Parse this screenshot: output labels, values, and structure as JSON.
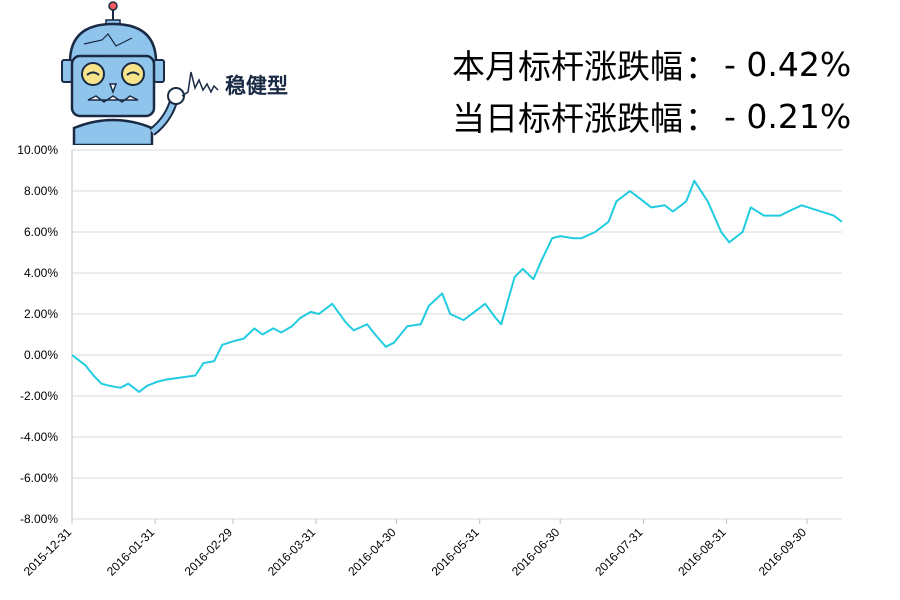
{
  "header": {
    "monthly_label": "本月标杆涨跌幅",
    "monthly_value": "- 0.42%",
    "daily_label": "当日标杆涨跌幅",
    "daily_value": "- 0.21%",
    "separator": "：",
    "brand": "稳健型"
  },
  "colors": {
    "line": "#22cce0",
    "grid": "#d9d9d9",
    "robot_body": "#8fc4ec",
    "robot_outline": "#1a2a44"
  },
  "icons": {
    "mascot": "robot-mascot-icon"
  },
  "chart_data": {
    "type": "line",
    "ylim": [
      -8,
      10
    ],
    "yticks": [
      10,
      8,
      6,
      4,
      2,
      0,
      -2,
      -4,
      -6,
      -8
    ],
    "ytick_labels": [
      "10.00%",
      "8.00%",
      "6.00%",
      "4.00%",
      "2.00%",
      "0.00%",
      "-2.00%",
      "-4.00%",
      "-6.00%",
      "-8.00%"
    ],
    "xticks": [
      "2015-12-31",
      "2016-01-31",
      "2016-02-29",
      "2016-03-31",
      "2016-04-30",
      "2016-05-31",
      "2016-06-30",
      "2016-07-31",
      "2016-08-31",
      "2016-09-30"
    ],
    "grid": true,
    "x": [
      "2015-12-31",
      "2016-01-05",
      "2016-01-08",
      "2016-01-11",
      "2016-01-14",
      "2016-01-18",
      "2016-01-21",
      "2016-01-25",
      "2016-01-28",
      "2016-02-01",
      "2016-02-04",
      "2016-02-15",
      "2016-02-18",
      "2016-02-22",
      "2016-02-25",
      "2016-03-01",
      "2016-03-04",
      "2016-03-08",
      "2016-03-11",
      "2016-03-15",
      "2016-03-18",
      "2016-03-22",
      "2016-03-25",
      "2016-03-29",
      "2016-04-01",
      "2016-04-06",
      "2016-04-11",
      "2016-04-14",
      "2016-04-19",
      "2016-04-22",
      "2016-04-26",
      "2016-04-29",
      "2016-05-04",
      "2016-05-09",
      "2016-05-12",
      "2016-05-17",
      "2016-05-20",
      "2016-05-25",
      "2016-05-30",
      "2016-06-02",
      "2016-06-06",
      "2016-06-08",
      "2016-06-13",
      "2016-06-16",
      "2016-06-20",
      "2016-06-23",
      "2016-06-27",
      "2016-06-30",
      "2016-07-05",
      "2016-07-08",
      "2016-07-13",
      "2016-07-18",
      "2016-07-21",
      "2016-07-26",
      "2016-07-29",
      "2016-08-03",
      "2016-08-08",
      "2016-08-11",
      "2016-08-16",
      "2016-08-19",
      "2016-08-24",
      "2016-08-29",
      "2016-09-01",
      "2016-09-06",
      "2016-09-09",
      "2016-09-14",
      "2016-09-20",
      "2016-09-23",
      "2016-09-28",
      "2016-10-10",
      "2016-10-13"
    ],
    "series": [
      {
        "values": [
          0.0,
          -0.5,
          -1.0,
          -1.4,
          -1.5,
          -1.6,
          -1.4,
          -1.8,
          -1.5,
          -1.3,
          -1.2,
          -1.0,
          -0.4,
          -0.3,
          0.5,
          0.7,
          0.8,
          1.3,
          1.0,
          1.3,
          1.1,
          1.4,
          1.8,
          2.1,
          2.0,
          2.5,
          1.6,
          1.2,
          1.5,
          1.0,
          0.4,
          0.6,
          1.4,
          1.5,
          2.4,
          3.0,
          2.0,
          1.7,
          2.2,
          2.5,
          1.8,
          1.5,
          3.8,
          4.2,
          3.7,
          4.6,
          5.7,
          5.8,
          5.7,
          5.7,
          6.0,
          6.5,
          7.5,
          8.0,
          7.7,
          7.2,
          7.3,
          7.0,
          7.5,
          8.5,
          7.5,
          6.0,
          5.5,
          6.0,
          7.2,
          6.8,
          6.8,
          7.0,
          7.3,
          6.8,
          6.5
        ]
      }
    ]
  }
}
